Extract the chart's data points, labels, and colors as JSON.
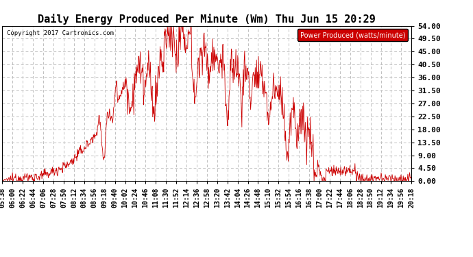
{
  "title": "Daily Energy Produced Per Minute (Wm) Thu Jun 15 20:29",
  "copyright": "Copyright 2017 Cartronics.com",
  "legend_label": "Power Produced (watts/minute)",
  "legend_bg": "#cc0000",
  "legend_fg": "#ffffff",
  "ylabel_right_values": [
    0.0,
    4.5,
    9.0,
    13.5,
    18.0,
    22.5,
    27.0,
    31.5,
    36.0,
    40.5,
    45.0,
    49.5,
    54.0
  ],
  "ymax": 54.0,
  "ymin": 0.0,
  "line_color": "#cc0000",
  "bg_color": "#ffffff",
  "plot_bg": "#ffffff",
  "grid_color": "#c0c0c0",
  "title_fontsize": 11,
  "tick_fontsize": 7,
  "x_tick_labels": [
    "05:38",
    "06:00",
    "06:22",
    "06:44",
    "07:06",
    "07:28",
    "07:50",
    "08:12",
    "08:34",
    "08:56",
    "09:18",
    "09:40",
    "10:02",
    "10:24",
    "10:46",
    "11:08",
    "11:30",
    "11:52",
    "12:14",
    "12:36",
    "12:58",
    "13:20",
    "13:42",
    "14:04",
    "14:26",
    "14:48",
    "15:10",
    "15:32",
    "15:54",
    "16:16",
    "16:38",
    "17:00",
    "17:22",
    "17:44",
    "18:06",
    "18:28",
    "18:50",
    "19:12",
    "19:34",
    "19:56",
    "20:18"
  ]
}
